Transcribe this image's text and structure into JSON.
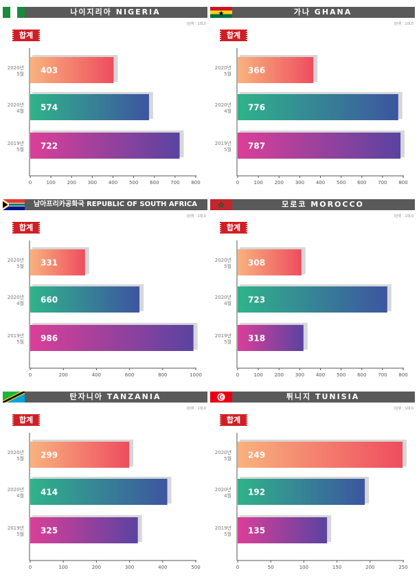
{
  "unit_label": "(단위 : 1대,0",
  "badge_label": "합계",
  "colors": {
    "header": "#5a5a5a",
    "badge": "#cf1f26",
    "shadow": "#d7d7d7",
    "row1": [
      "#f9b27e",
      "#ee4d5f"
    ],
    "row2": [
      "#2fb38a",
      "#3d55a0"
    ],
    "row3": [
      "#da3f98",
      "#5a43a1"
    ]
  },
  "chart_data": [
    {
      "type": "bar",
      "title": "나이지리아 NIGERIA",
      "flag": "nigeria-flag",
      "categories": [
        {
          "year": "2020년",
          "month": "5월"
        },
        {
          "year": "2020년",
          "month": "4월"
        },
        {
          "year": "2019년",
          "month": "5월"
        }
      ],
      "values": [
        403,
        574,
        722
      ],
      "xlim": [
        0,
        800
      ],
      "xticks": [
        0,
        100,
        200,
        300,
        400,
        500,
        600,
        700,
        800
      ]
    },
    {
      "type": "bar",
      "title": "가나 GHANA",
      "flag": "ghana-flag",
      "categories": [
        {
          "year": "2020년",
          "month": "5월"
        },
        {
          "year": "2020년",
          "month": "4월"
        },
        {
          "year": "2019년",
          "month": "5월"
        }
      ],
      "values": [
        366,
        776,
        787
      ],
      "xlim": [
        0,
        800
      ],
      "xticks": [
        0,
        100,
        200,
        300,
        400,
        500,
        600,
        700,
        800
      ]
    },
    {
      "type": "bar",
      "title": "남아프리카공화국 REPUBLIC OF SOUTH AFRICA",
      "flag": "south-africa-flag",
      "categories": [
        {
          "year": "2020년",
          "month": "5월"
        },
        {
          "year": "2020년",
          "month": "4월"
        },
        {
          "year": "2019년",
          "month": "5월"
        }
      ],
      "values": [
        331,
        660,
        986
      ],
      "xlim": [
        0,
        1000
      ],
      "xticks": [
        0,
        200,
        400,
        600,
        800,
        1000
      ]
    },
    {
      "type": "bar",
      "title": "모로코 MOROCCO",
      "flag": "morocco-flag",
      "categories": [
        {
          "year": "2020년",
          "month": "5월"
        },
        {
          "year": "2020년",
          "month": "4월"
        },
        {
          "year": "2019년",
          "month": "5월"
        }
      ],
      "values": [
        308,
        723,
        318
      ],
      "xlim": [
        0,
        800
      ],
      "xticks": [
        0,
        100,
        200,
        300,
        400,
        500,
        600,
        700,
        800
      ]
    },
    {
      "type": "bar",
      "title": "탄자니아 TANZANIA",
      "flag": "tanzania-flag",
      "categories": [
        {
          "year": "2020년",
          "month": "5월"
        },
        {
          "year": "2020년",
          "month": "4월"
        },
        {
          "year": "2019년",
          "month": "5월"
        }
      ],
      "values": [
        299,
        414,
        325
      ],
      "xlim": [
        0,
        500
      ],
      "xticks": [
        0,
        100,
        200,
        300,
        400,
        500
      ]
    },
    {
      "type": "bar",
      "title": "튀니지 TUNISIA",
      "flag": "tunisia-flag",
      "categories": [
        {
          "year": "2020년",
          "month": "5월"
        },
        {
          "year": "2020년",
          "month": "4월"
        },
        {
          "year": "2019년",
          "month": "5월"
        }
      ],
      "values": [
        249,
        192,
        135
      ],
      "xlim": [
        0,
        250
      ],
      "xticks": [
        0,
        50,
        100,
        150,
        200,
        250
      ]
    }
  ]
}
